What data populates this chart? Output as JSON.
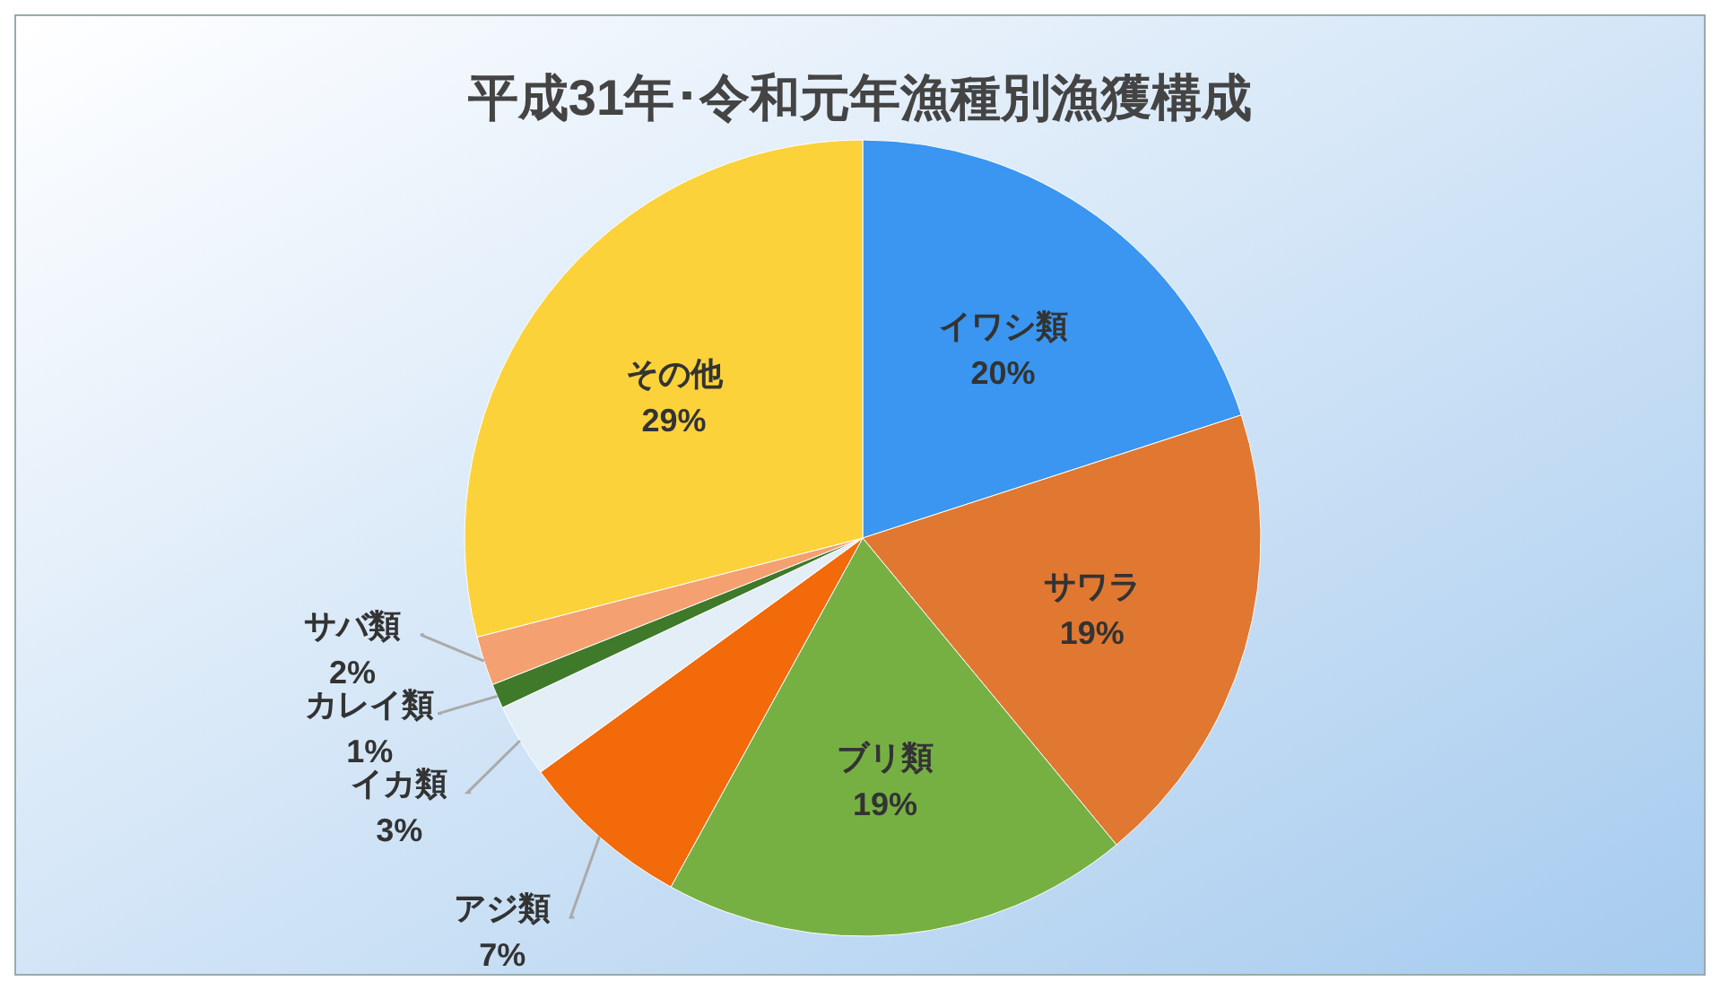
{
  "chart_data": {
    "type": "pie",
    "title": "平成31年･令和元年漁種別漁獲構成",
    "categories": [
      "イワシ類",
      "サワラ",
      "ブリ類",
      "アジ類",
      "イカ類",
      "カレイ類",
      "サバ類",
      "その他"
    ],
    "values": [
      20,
      19,
      19,
      7,
      3,
      1,
      2,
      29
    ],
    "colors": [
      "#3a96f0",
      "#e07832",
      "#76b043",
      "#f26a0a",
      "#e4eef6",
      "#3f7a2a",
      "#f4a070",
      "#fcd23a"
    ],
    "value_labels": [
      "20%",
      "19%",
      "19%",
      "7%",
      "3%",
      "1%",
      "2%",
      "29%"
    ]
  }
}
